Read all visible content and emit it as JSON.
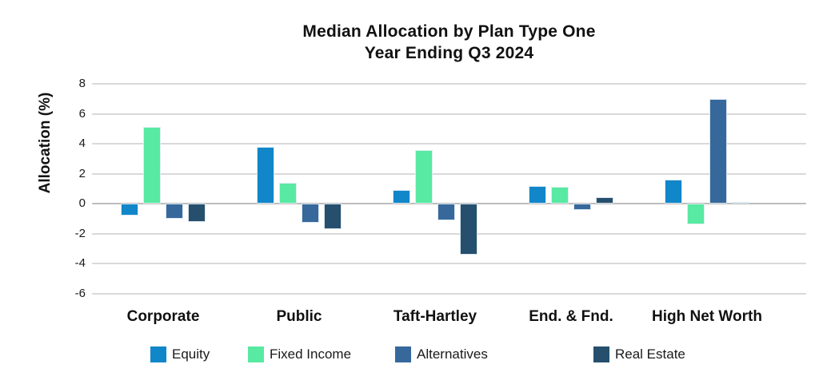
{
  "title": {
    "line1": "Median Allocation by Plan Type One",
    "line2": "Year Ending Q3 2024"
  },
  "chart_data": {
    "type": "bar",
    "title": "Median Allocation by Plan Type One Year Ending Q3 2024",
    "xlabel": "",
    "ylabel": "Allocation (%)",
    "ylim": [
      -6,
      8
    ],
    "yticks": [
      8,
      6,
      4,
      2,
      0,
      -2,
      -4,
      -6
    ],
    "grid": true,
    "legend_position": "bottom",
    "categories": [
      "Corporate",
      "Public",
      "Taft-Hartley",
      "End. & Fnd.",
      "High Net Worth"
    ],
    "series": [
      {
        "name": "Equity",
        "color": "#1186c9",
        "values": [
          -0.8,
          3.8,
          0.9,
          1.2,
          1.6
        ]
      },
      {
        "name": "Fixed Income",
        "color": "#58e9a2",
        "values": [
          5.1,
          1.4,
          3.6,
          1.1,
          -1.4
        ]
      },
      {
        "name": "Alternatives",
        "color": "#36689c",
        "values": [
          -1.0,
          -1.3,
          -1.1,
          -0.4,
          7.0
        ]
      },
      {
        "name": "Real Estate",
        "color": "#264f6d",
        "values": [
          -1.2,
          -1.7,
          -3.4,
          0.45,
          0.1
        ]
      }
    ]
  },
  "colors": {
    "background": "#ffffff",
    "gridline": "#d9d9d9",
    "zero_line": "#bcbcbc",
    "text": "#111111"
  }
}
